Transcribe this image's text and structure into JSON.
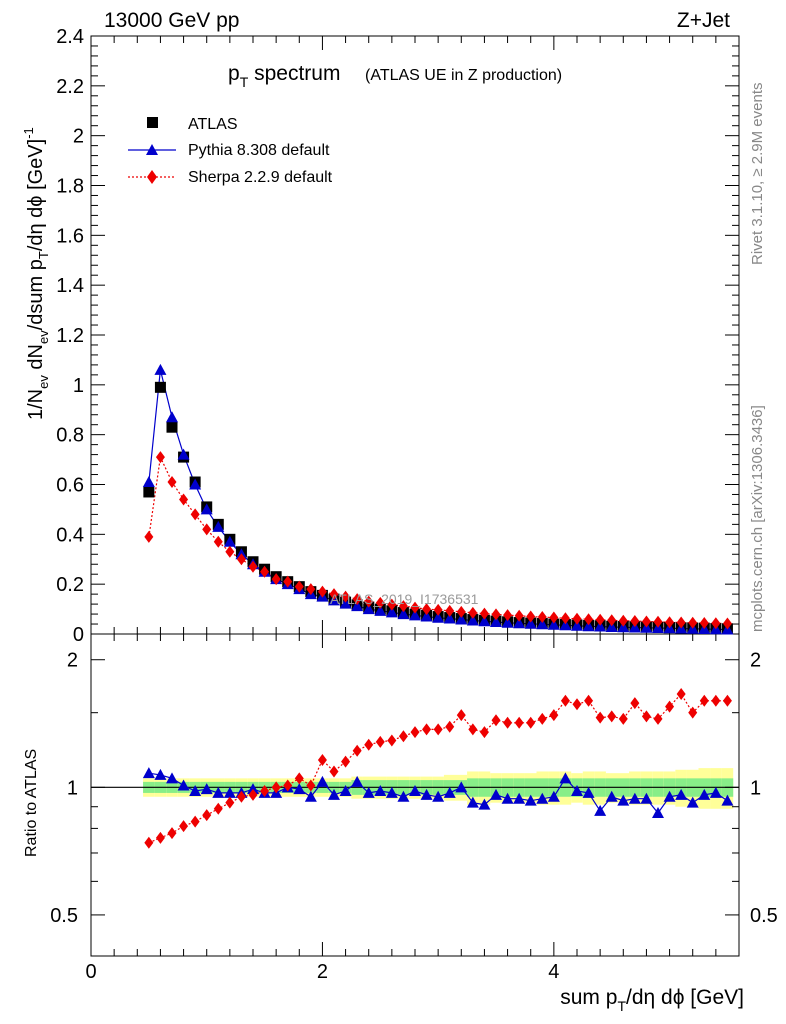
{
  "header": {
    "left": "13000 GeV pp",
    "right": "Z+Jet"
  },
  "title": {
    "main_p": "p",
    "main_sub": "T",
    "main_rest": " spectrum",
    "small": "(ATLAS UE in Z production)"
  },
  "side_labels": {
    "rivet": "Rivet 3.1.10, ≥ 2.9M events",
    "mcplots": "mcplots.cern.ch [arXiv:1306.3436]"
  },
  "watermark": "ATLAS_2019_I1736531",
  "ylabel_top": "1/N_ev dN_ev/dsum p_T/dη dϕ [GeV]^-1",
  "ylabel_bottom": "Ratio to ATLAS",
  "xlabel": "sum p_T/dη dϕ [GeV]",
  "legend": [
    {
      "label": "ATLAS",
      "color": "#000000",
      "marker": "square"
    },
    {
      "label": "Pythia 8.308 default",
      "color": "#0000cc",
      "marker": "triangle"
    },
    {
      "label": "Sherpa 2.2.9 default",
      "color": "#ee0000",
      "marker": "diamond"
    }
  ],
  "chart_data": [
    {
      "type": "scatter",
      "panel": "main",
      "xlim": [
        0,
        5.6
      ],
      "ylim": [
        0,
        2.4
      ],
      "xticks": [
        0,
        2,
        4
      ],
      "yticks": [
        "0",
        "0.2",
        "0.4",
        "0.6",
        "0.8",
        "1",
        "1.2",
        "1.4",
        "1.6",
        "1.8",
        "2",
        "2.2",
        "2.4"
      ],
      "x": [
        0.5,
        0.6,
        0.7,
        0.8,
        0.9,
        1.0,
        1.1,
        1.2,
        1.3,
        1.4,
        1.5,
        1.6,
        1.7,
        1.8,
        1.9,
        2.0,
        2.1,
        2.2,
        2.3,
        2.4,
        2.5,
        2.6,
        2.7,
        2.8,
        2.9,
        3.0,
        3.1,
        3.2,
        3.3,
        3.4,
        3.5,
        3.6,
        3.7,
        3.8,
        3.9,
        4.0,
        4.1,
        4.2,
        4.3,
        4.4,
        4.5,
        4.6,
        4.7,
        4.8,
        4.9,
        5.0,
        5.1,
        5.2,
        5.3,
        5.4,
        5.5
      ],
      "series": [
        {
          "name": "ATLAS",
          "values": [
            0.57,
            0.99,
            0.83,
            0.71,
            0.61,
            0.51,
            0.44,
            0.38,
            0.33,
            0.29,
            0.26,
            0.23,
            0.21,
            0.19,
            0.17,
            0.155,
            0.14,
            0.128,
            0.117,
            0.108,
            0.1,
            0.093,
            0.086,
            0.08,
            0.075,
            0.07,
            0.066,
            0.062,
            0.058,
            0.055,
            0.052,
            0.049,
            0.046,
            0.044,
            0.042,
            0.04,
            0.038,
            0.036,
            0.034,
            0.033,
            0.031,
            0.03,
            0.029,
            0.028,
            0.027,
            0.026,
            0.025,
            0.024,
            0.023,
            0.022,
            0.021
          ]
        },
        {
          "name": "Pythia 8.308 default",
          "values": [
            0.61,
            1.06,
            0.87,
            0.72,
            0.6,
            0.5,
            0.43,
            0.37,
            0.32,
            0.28,
            0.25,
            0.22,
            0.2,
            0.18,
            0.16,
            0.15,
            0.135,
            0.122,
            0.112,
            0.1,
            0.093,
            0.087,
            0.08,
            0.075,
            0.07,
            0.065,
            0.062,
            0.058,
            0.054,
            0.051,
            0.048,
            0.045,
            0.043,
            0.041,
            0.039,
            0.037,
            0.035,
            0.033,
            0.031,
            0.03,
            0.028,
            0.027,
            0.026,
            0.025,
            0.024,
            0.023,
            0.022,
            0.021,
            0.02,
            0.019,
            0.018
          ]
        },
        {
          "name": "Sherpa 2.2.9 default",
          "values": [
            0.39,
            0.71,
            0.61,
            0.54,
            0.48,
            0.42,
            0.37,
            0.33,
            0.3,
            0.27,
            0.25,
            0.22,
            0.21,
            0.19,
            0.18,
            0.17,
            0.16,
            0.15,
            0.14,
            0.13,
            0.125,
            0.118,
            0.112,
            0.106,
            0.1,
            0.097,
            0.093,
            0.089,
            0.085,
            0.082,
            0.079,
            0.076,
            0.073,
            0.07,
            0.068,
            0.066,
            0.063,
            0.061,
            0.059,
            0.057,
            0.055,
            0.053,
            0.052,
            0.05,
            0.049,
            0.047,
            0.046,
            0.045,
            0.044,
            0.043,
            0.042
          ]
        }
      ]
    },
    {
      "type": "scatter",
      "panel": "ratio",
      "ylabel": "Ratio to ATLAS",
      "log_y": true,
      "ylim": [
        0.4,
        2.3
      ],
      "yticks": [
        "0.5",
        "1",
        "2"
      ],
      "x": [
        0.5,
        0.6,
        0.7,
        0.8,
        0.9,
        1.0,
        1.1,
        1.2,
        1.3,
        1.4,
        1.5,
        1.6,
        1.7,
        1.8,
        1.9,
        2.0,
        2.1,
        2.2,
        2.3,
        2.4,
        2.5,
        2.6,
        2.7,
        2.8,
        2.9,
        3.0,
        3.1,
        3.2,
        3.3,
        3.4,
        3.5,
        3.6,
        3.7,
        3.8,
        3.9,
        4.0,
        4.1,
        4.2,
        4.3,
        4.4,
        4.5,
        4.6,
        4.7,
        4.8,
        4.9,
        5.0,
        5.1,
        5.2,
        5.3,
        5.4,
        5.5
      ],
      "band_inner": [
        0.03,
        0.03,
        0.03,
        0.03,
        0.03,
        0.03,
        0.03,
        0.03,
        0.03,
        0.03,
        0.03,
        0.03,
        0.03,
        0.03,
        0.03,
        0.03,
        0.03,
        0.03,
        0.04,
        0.04,
        0.04,
        0.04,
        0.04,
        0.04,
        0.04,
        0.04,
        0.04,
        0.04,
        0.05,
        0.05,
        0.05,
        0.05,
        0.05,
        0.05,
        0.05,
        0.05,
        0.05,
        0.05,
        0.05,
        0.05,
        0.05,
        0.05,
        0.05,
        0.05,
        0.05,
        0.05,
        0.05,
        0.05,
        0.05,
        0.05,
        0.05
      ],
      "band_outer": [
        0.05,
        0.05,
        0.05,
        0.05,
        0.05,
        0.05,
        0.05,
        0.05,
        0.05,
        0.05,
        0.05,
        0.05,
        0.05,
        0.05,
        0.05,
        0.05,
        0.05,
        0.05,
        0.06,
        0.06,
        0.06,
        0.06,
        0.06,
        0.06,
        0.06,
        0.06,
        0.07,
        0.07,
        0.09,
        0.09,
        0.08,
        0.08,
        0.08,
        0.08,
        0.09,
        0.09,
        0.09,
        0.08,
        0.09,
        0.09,
        0.08,
        0.08,
        0.09,
        0.09,
        0.09,
        0.09,
        0.1,
        0.1,
        0.11,
        0.11,
        0.11
      ],
      "series": [
        {
          "name": "Pythia 8.308 default",
          "values": [
            1.08,
            1.07,
            1.05,
            1.01,
            0.98,
            0.99,
            0.97,
            0.97,
            0.97,
            0.99,
            0.97,
            0.97,
            1.0,
            0.99,
            0.95,
            1.03,
            0.96,
            0.98,
            1.03,
            0.97,
            0.98,
            0.97,
            0.95,
            0.98,
            0.96,
            0.95,
            0.97,
            1.0,
            0.92,
            0.91,
            0.96,
            0.94,
            0.94,
            0.93,
            0.94,
            0.95,
            1.05,
            0.98,
            0.97,
            0.88,
            0.95,
            0.93,
            0.94,
            0.94,
            0.87,
            0.95,
            0.96,
            0.92,
            0.96,
            0.97,
            0.93
          ]
        },
        {
          "name": "Sherpa 2.2.9 default",
          "values": [
            0.74,
            0.76,
            0.78,
            0.81,
            0.83,
            0.86,
            0.89,
            0.92,
            0.95,
            0.96,
            0.98,
            1.0,
            1.01,
            1.05,
            1.01,
            1.16,
            1.09,
            1.15,
            1.22,
            1.26,
            1.28,
            1.29,
            1.32,
            1.35,
            1.37,
            1.37,
            1.39,
            1.48,
            1.37,
            1.35,
            1.44,
            1.42,
            1.42,
            1.42,
            1.45,
            1.48,
            1.6,
            1.57,
            1.6,
            1.46,
            1.47,
            1.45,
            1.58,
            1.47,
            1.45,
            1.55,
            1.66,
            1.5,
            1.6,
            1.6,
            1.6
          ]
        }
      ]
    }
  ]
}
